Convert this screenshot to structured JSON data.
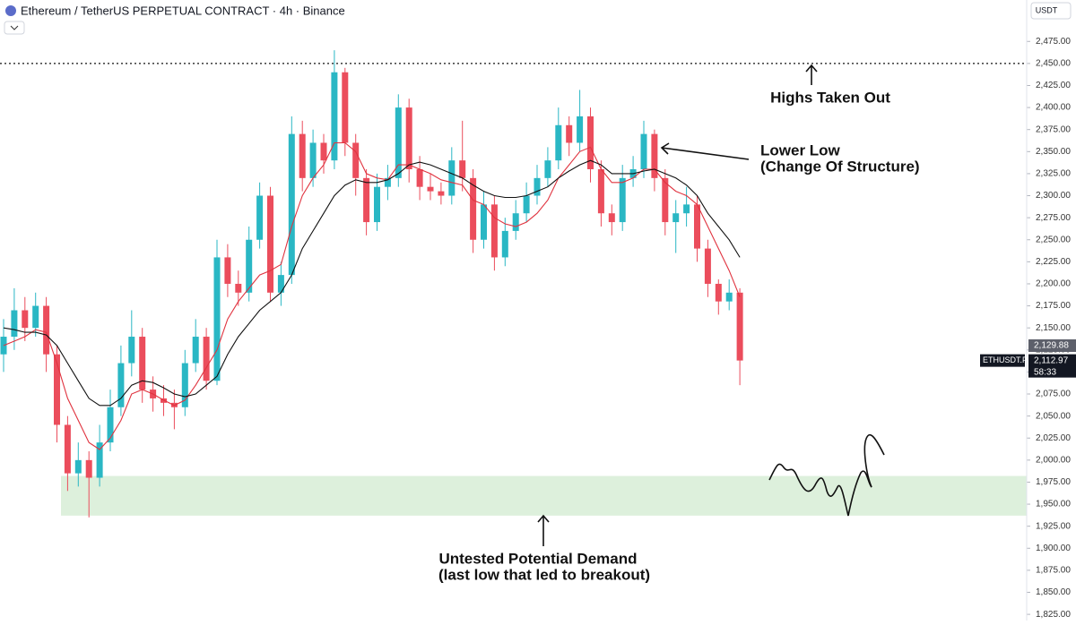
{
  "chart_data": {
    "type": "candlestick",
    "title": "Ethereum / TetherUS PERPETUAL CONTRACT · 4h · Binance",
    "currency": "USDT",
    "symbol": "ETHUSDT.P",
    "countdown": "58:33",
    "up_color": "#2ab7c4",
    "down_color": "#eb4d5c",
    "ylim": [
      1818,
      2522
    ],
    "yticks": [
      {
        "value": 1825,
        "label": "1,825.00"
      },
      {
        "value": 1850,
        "label": "1,850.00"
      },
      {
        "value": 1875,
        "label": "1,875.00"
      },
      {
        "value": 1900,
        "label": "1,900.00"
      },
      {
        "value": 1925,
        "label": "1,925.00"
      },
      {
        "value": 1950,
        "label": "1,950.00"
      },
      {
        "value": 1975,
        "label": "1,975.00"
      },
      {
        "value": 2000,
        "label": "2,000.00"
      },
      {
        "value": 2025,
        "label": "2,025.00"
      },
      {
        "value": 2050,
        "label": "2,050.00"
      },
      {
        "value": 2075,
        "label": "2,075.00"
      },
      {
        "value": 2100,
        "label": "2,100.00"
      },
      {
        "value": 2125,
        "label": "2,125.00"
      },
      {
        "value": 2150,
        "label": "2,150.00"
      },
      {
        "value": 2175,
        "label": "2,175.00"
      },
      {
        "value": 2200,
        "label": "2,200.00"
      },
      {
        "value": 2225,
        "label": "2,225.00"
      },
      {
        "value": 2250,
        "label": "2,250.00"
      },
      {
        "value": 2275,
        "label": "2,275.00"
      },
      {
        "value": 2300,
        "label": "2,300.00"
      },
      {
        "value": 2325,
        "label": "2,325.00"
      },
      {
        "value": 2350,
        "label": "2,350.00"
      },
      {
        "value": 2375,
        "label": "2,375.00"
      },
      {
        "value": 2400,
        "label": "2,400.00"
      },
      {
        "value": 2425,
        "label": "2,425.00"
      },
      {
        "value": 2450,
        "label": "2,450.00"
      },
      {
        "value": 2475,
        "label": "2,475.00"
      }
    ],
    "open": [
      2120,
      2140,
      2170,
      2150,
      2175,
      2120,
      2040,
      1985,
      2000,
      1980,
      2020,
      2060,
      2110,
      2140,
      2080,
      2070,
      2065,
      2060,
      2110,
      2140,
      2090,
      2230,
      2200,
      2190,
      2250,
      2300,
      2190,
      2210,
      2370,
      2320,
      2360,
      2340,
      2440,
      2360,
      2320,
      2270,
      2310,
      2320,
      2400,
      2330,
      2310,
      2305,
      2300,
      2340,
      2320,
      2250,
      2290,
      2230,
      2260,
      2280,
      2300,
      2320,
      2340,
      2380,
      2360,
      2390,
      2330,
      2280,
      2270,
      2320,
      2330,
      2370,
      2320,
      2270,
      2280,
      2290,
      2240,
      2200,
      2180,
      2190
    ],
    "high": [
      2160,
      2195,
      2185,
      2190,
      2185,
      2130,
      2050,
      2020,
      2010,
      2040,
      2080,
      2130,
      2170,
      2150,
      2095,
      2085,
      2080,
      2125,
      2160,
      2150,
      2250,
      2245,
      2215,
      2265,
      2315,
      2310,
      2225,
      2390,
      2385,
      2375,
      2370,
      2465,
      2445,
      2370,
      2330,
      2325,
      2335,
      2415,
      2410,
      2345,
      2325,
      2315,
      2355,
      2385,
      2330,
      2305,
      2300,
      2275,
      2295,
      2315,
      2335,
      2355,
      2400,
      2390,
      2420,
      2400,
      2340,
      2290,
      2335,
      2345,
      2385,
      2375,
      2330,
      2295,
      2310,
      2300,
      2250,
      2205,
      2205,
      2195
    ],
    "low": [
      2100,
      2125,
      2135,
      2140,
      2100,
      2020,
      1965,
      1970,
      1935,
      1970,
      2010,
      2050,
      2095,
      2065,
      2055,
      2050,
      2035,
      2050,
      2100,
      2080,
      2085,
      2185,
      2175,
      2180,
      2240,
      2180,
      2175,
      2200,
      2305,
      2310,
      2325,
      2330,
      2345,
      2300,
      2255,
      2260,
      2295,
      2310,
      2315,
      2295,
      2295,
      2290,
      2290,
      2305,
      2235,
      2240,
      2215,
      2220,
      2250,
      2270,
      2290,
      2310,
      2330,
      2345,
      2350,
      2315,
      2265,
      2255,
      2260,
      2310,
      2320,
      2305,
      2255,
      2235,
      2265,
      2225,
      2185,
      2165,
      2170,
      2085
    ],
    "close": [
      2140,
      2170,
      2150,
      2175,
      2120,
      2040,
      1985,
      2000,
      1980,
      2020,
      2060,
      2110,
      2140,
      2080,
      2070,
      2065,
      2060,
      2110,
      2140,
      2090,
      2230,
      2200,
      2190,
      2250,
      2300,
      2190,
      2210,
      2370,
      2320,
      2360,
      2340,
      2440,
      2360,
      2320,
      2270,
      2310,
      2320,
      2400,
      2330,
      2310,
      2305,
      2300,
      2340,
      2320,
      2250,
      2290,
      2230,
      2260,
      2280,
      2300,
      2320,
      2340,
      2380,
      2360,
      2390,
      2330,
      2280,
      2270,
      2320,
      2330,
      2370,
      2320,
      2270,
      2280,
      2290,
      2240,
      2200,
      2180,
      2190,
      2113
    ],
    "series": [
      {
        "color": "#e0333f",
        "values": [
          2130,
          2135,
          2140,
          2148,
          2145,
          2110,
          2070,
          2045,
          2020,
          2012,
          2025,
          2045,
          2075,
          2080,
          2075,
          2068,
          2062,
          2068,
          2085,
          2105,
          2125,
          2160,
          2180,
          2195,
          2210,
          2215,
          2222,
          2265,
          2300,
          2320,
          2335,
          2360,
          2360,
          2350,
          2325,
          2320,
          2318,
          2335,
          2335,
          2330,
          2325,
          2318,
          2315,
          2312,
          2295,
          2290,
          2275,
          2268,
          2265,
          2270,
          2280,
          2295,
          2320,
          2335,
          2350,
          2355,
          2330,
          2315,
          2315,
          2320,
          2330,
          2330,
          2315,
          2305,
          2300,
          2290,
          2265,
          2240,
          2215,
          2185
        ]
      },
      {
        "color": "#111111",
        "values": [
          2150,
          2148,
          2145,
          2145,
          2142,
          2130,
          2110,
          2090,
          2070,
          2062,
          2062,
          2070,
          2085,
          2090,
          2088,
          2082,
          2075,
          2072,
          2075,
          2085,
          2095,
          2120,
          2140,
          2155,
          2170,
          2180,
          2190,
          2210,
          2240,
          2260,
          2280,
          2300,
          2312,
          2318,
          2315,
          2315,
          2318,
          2325,
          2335,
          2338,
          2335,
          2330,
          2325,
          2320,
          2312,
          2305,
          2300,
          2298,
          2298,
          2300,
          2305,
          2310,
          2320,
          2328,
          2335,
          2340,
          2335,
          2325,
          2325,
          2325,
          2328,
          2330,
          2325,
          2320,
          2312,
          2300,
          2280,
          2265,
          2250,
          2230
        ]
      }
    ],
    "highs_level": 2450,
    "demand_zone": [
      1937,
      1982
    ],
    "price_tags": [
      {
        "value": 2129.88,
        "label": "2,129.88"
      },
      {
        "value": 2112.97,
        "label": "2,112.97"
      }
    ],
    "annotations": [
      "Highs Taken Out",
      "Lower Low",
      "(Change Of Structure)",
      "Untested Potential Demand",
      "(last low that led to breakout)"
    ]
  }
}
